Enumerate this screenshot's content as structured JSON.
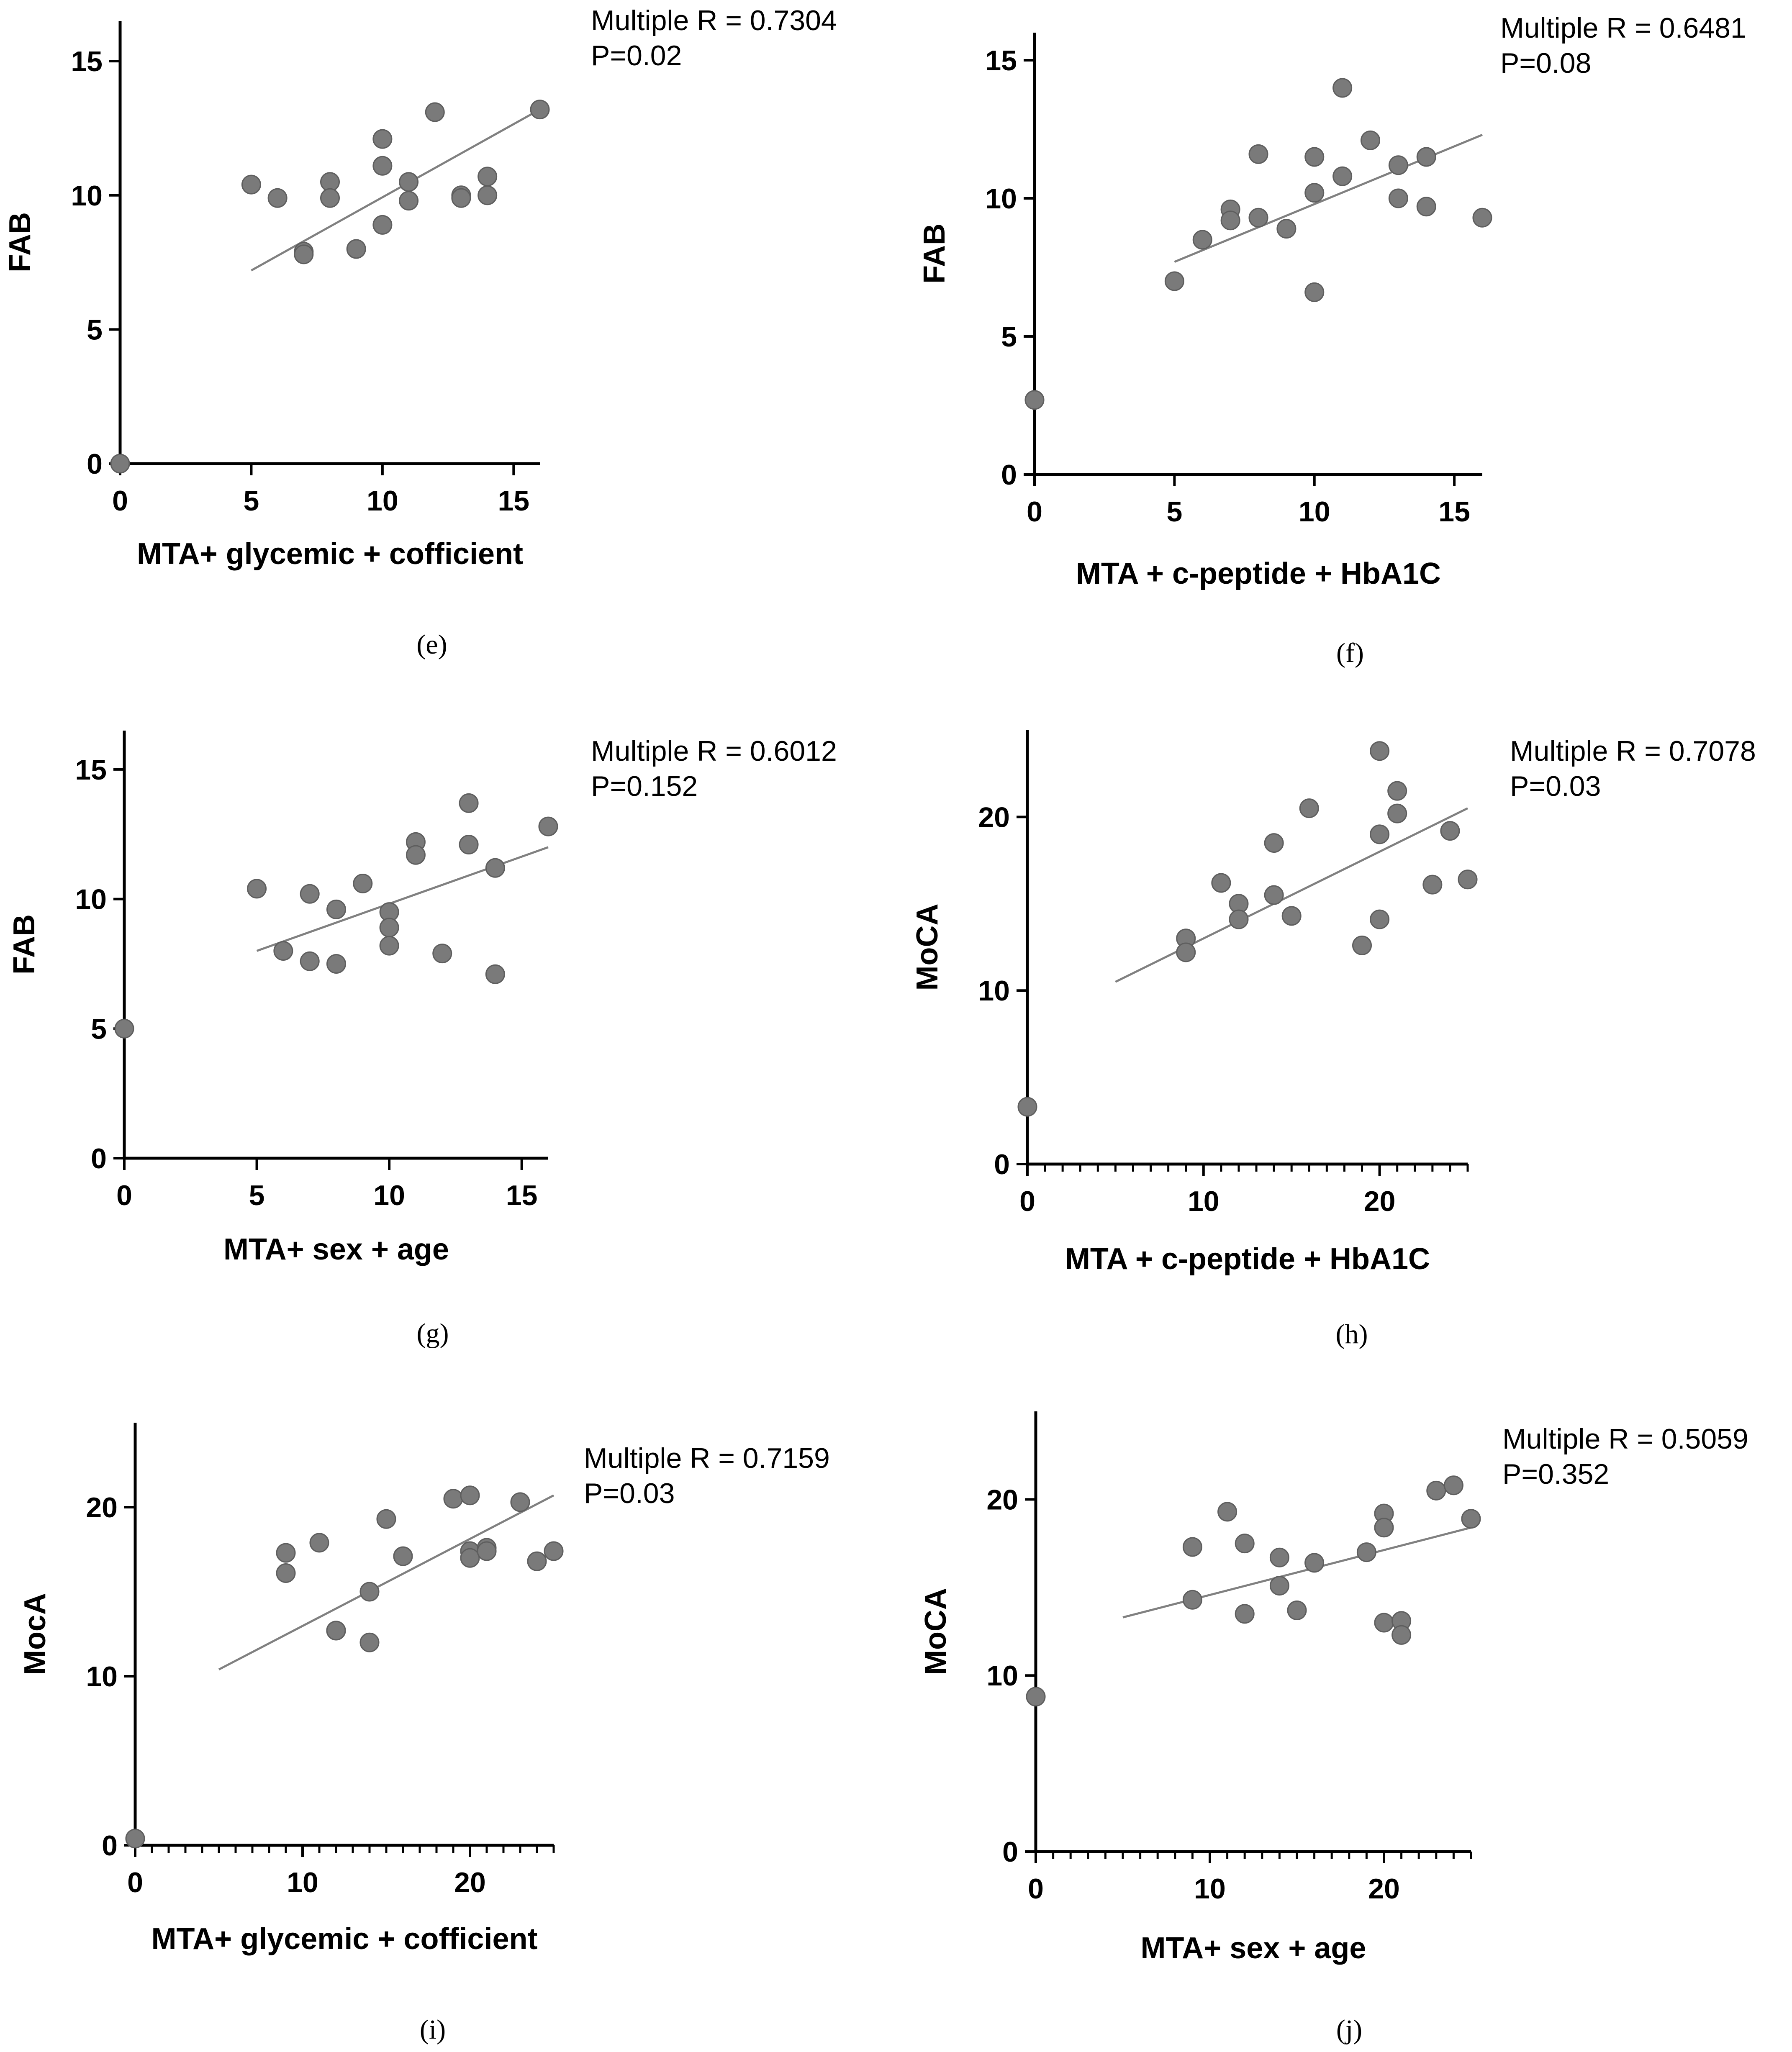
{
  "chart_data": [
    {
      "id": "e",
      "type": "scatter",
      "panel_label": "(e)",
      "xlabel": "MTA+ glycemic + cofficient",
      "ylabel": "FAB",
      "xlim": [
        0,
        16
      ],
      "ylim": [
        0,
        16.5
      ],
      "xticks": [
        0,
        5,
        10,
        15
      ],
      "yticks": [
        0,
        5,
        10,
        15
      ],
      "annotation": [
        "Multiple R = 0.7304",
        "P=0.02"
      ],
      "points": [
        [
          0,
          0
        ],
        [
          5,
          10.4
        ],
        [
          6,
          9.9
        ],
        [
          7,
          7.9
        ],
        [
          7,
          7.8
        ],
        [
          8,
          10.5
        ],
        [
          8,
          9.9
        ],
        [
          9,
          8.0
        ],
        [
          10,
          12.1
        ],
        [
          10,
          11.1
        ],
        [
          10,
          8.9
        ],
        [
          11,
          10.5
        ],
        [
          11,
          9.8
        ],
        [
          12,
          13.1
        ],
        [
          13,
          10.0
        ],
        [
          13,
          9.9
        ],
        [
          14,
          10.7
        ],
        [
          14,
          10.0
        ],
        [
          16,
          13.2
        ]
      ],
      "fit": [
        [
          5,
          7.2
        ],
        [
          16,
          13.2
        ]
      ]
    },
    {
      "id": "f",
      "type": "scatter",
      "panel_label": "(f)",
      "xlabel": "MTA + c-peptide + HbA1C",
      "ylabel": "FAB",
      "xlim": [
        0,
        16
      ],
      "ylim": [
        0,
        16
      ],
      "xticks": [
        0,
        5,
        10,
        15
      ],
      "yticks": [
        0,
        5,
        10,
        15
      ],
      "annotation": [
        "Multiple R = 0.6481",
        "P=0.08"
      ],
      "points": [
        [
          0,
          2.7
        ],
        [
          5,
          7.0
        ],
        [
          6,
          8.5
        ],
        [
          7,
          9.6
        ],
        [
          7,
          9.2
        ],
        [
          8,
          11.6
        ],
        [
          8,
          9.3
        ],
        [
          9,
          8.9
        ],
        [
          10,
          11.5
        ],
        [
          10,
          10.2
        ],
        [
          10,
          6.6
        ],
        [
          11,
          14.0
        ],
        [
          11,
          10.8
        ],
        [
          12,
          12.1
        ],
        [
          13,
          11.2
        ],
        [
          13,
          10.0
        ],
        [
          14,
          11.5
        ],
        [
          14,
          9.7
        ],
        [
          16,
          9.3
        ]
      ],
      "fit": [
        [
          5,
          7.7
        ],
        [
          16,
          12.3
        ]
      ]
    },
    {
      "id": "g",
      "type": "scatter",
      "panel_label": "(g)",
      "xlabel": "MTA+ sex + age",
      "ylabel": "FAB",
      "xlim": [
        0,
        16
      ],
      "ylim": [
        0,
        16.5
      ],
      "xticks": [
        0,
        5,
        10,
        15
      ],
      "yticks": [
        0,
        5,
        10,
        15
      ],
      "annotation": [
        "Multiple R = 0.6012",
        "P=0.152"
      ],
      "points": [
        [
          0,
          5.0
        ],
        [
          5,
          10.4
        ],
        [
          6,
          8.0
        ],
        [
          7,
          10.2
        ],
        [
          7,
          7.6
        ],
        [
          8,
          9.6
        ],
        [
          8,
          7.5
        ],
        [
          9,
          10.6
        ],
        [
          10,
          9.5
        ],
        [
          10,
          8.9
        ],
        [
          10,
          8.2
        ],
        [
          11,
          12.2
        ],
        [
          11,
          11.7
        ],
        [
          12,
          7.9
        ],
        [
          13,
          13.7
        ],
        [
          13,
          12.1
        ],
        [
          14,
          11.2
        ],
        [
          14,
          7.1
        ],
        [
          16,
          12.8
        ]
      ],
      "fit": [
        [
          5,
          8.0
        ],
        [
          16,
          12.0
        ]
      ]
    },
    {
      "id": "h",
      "type": "scatter",
      "panel_label": "(h)",
      "xlabel": "MTA + c-peptide + HbA1C",
      "ylabel": "MoCA",
      "xlim": [
        0,
        25
      ],
      "ylim": [
        0,
        25
      ],
      "xticks": [
        0,
        10,
        20
      ],
      "yticks": [
        0,
        10,
        20
      ],
      "minor_x_step": 1,
      "annotation": [
        "Multiple R = 0.7078",
        "P=0.03"
      ],
      "points": [
        [
          0,
          3.3
        ],
        [
          9,
          13.0
        ],
        [
          9,
          12.2
        ],
        [
          11,
          16.2
        ],
        [
          12,
          15.0
        ],
        [
          12,
          14.1
        ],
        [
          14,
          18.5
        ],
        [
          14,
          15.5
        ],
        [
          15,
          14.3
        ],
        [
          16,
          20.5
        ],
        [
          19,
          12.6
        ],
        [
          20,
          23.8
        ],
        [
          20,
          19.0
        ],
        [
          20,
          14.1
        ],
        [
          21,
          21.5
        ],
        [
          21,
          20.2
        ],
        [
          23,
          16.1
        ],
        [
          24,
          19.2
        ],
        [
          25,
          16.4
        ]
      ],
      "fit": [
        [
          5,
          10.5
        ],
        [
          25,
          20.5
        ]
      ]
    },
    {
      "id": "i",
      "type": "scatter",
      "panel_label": "(i)",
      "xlabel": "MTA+ glycemic + cofficient",
      "ylabel": "MocA",
      "xlim": [
        0,
        25
      ],
      "ylim": [
        0,
        25
      ],
      "xticks": [
        0,
        10,
        20
      ],
      "yticks": [
        0,
        10,
        20
      ],
      "minor_x_step": 1,
      "annotation": [
        "Multiple R = 0.7159",
        "P=0.03"
      ],
      "points": [
        [
          0,
          0.4
        ],
        [
          9,
          17.3
        ],
        [
          9,
          16.1
        ],
        [
          11,
          17.9
        ],
        [
          12,
          12.7
        ],
        [
          12,
          12.7
        ],
        [
          14,
          15.0
        ],
        [
          14,
          12.0
        ],
        [
          15,
          19.3
        ],
        [
          16,
          17.1
        ],
        [
          19,
          20.5
        ],
        [
          20,
          20.7
        ],
        [
          20,
          17.4
        ],
        [
          20,
          17.0
        ],
        [
          21,
          17.6
        ],
        [
          21,
          17.4
        ],
        [
          23,
          20.3
        ],
        [
          24,
          16.8
        ],
        [
          25,
          17.4
        ]
      ],
      "fit": [
        [
          5,
          10.4
        ],
        [
          25,
          20.7
        ]
      ]
    },
    {
      "id": "j",
      "type": "scatter",
      "panel_label": "(j)",
      "xlabel": "MTA+ sex + age",
      "ylabel": "MoCA",
      "xlim": [
        0,
        25
      ],
      "ylim": [
        0,
        25
      ],
      "xticks": [
        0,
        10,
        20
      ],
      "yticks": [
        0,
        10,
        20
      ],
      "minor_x_step": 1,
      "annotation": [
        "Multiple R = 0.5059",
        "P=0.352"
      ],
      "points": [
        [
          0,
          8.8
        ],
        [
          9,
          17.3
        ],
        [
          9,
          14.3
        ],
        [
          11,
          19.3
        ],
        [
          12,
          17.5
        ],
        [
          12,
          13.5
        ],
        [
          14,
          16.7
        ],
        [
          14,
          15.1
        ],
        [
          15,
          13.7
        ],
        [
          16,
          16.4
        ],
        [
          19,
          17.0
        ],
        [
          20,
          19.2
        ],
        [
          20,
          18.4
        ],
        [
          20,
          13.0
        ],
        [
          21,
          13.1
        ],
        [
          21,
          12.3
        ],
        [
          23,
          20.5
        ],
        [
          24,
          20.8
        ],
        [
          25,
          18.9
        ]
      ],
      "fit": [
        [
          5,
          13.3
        ],
        [
          25,
          18.4
        ]
      ]
    }
  ]
}
